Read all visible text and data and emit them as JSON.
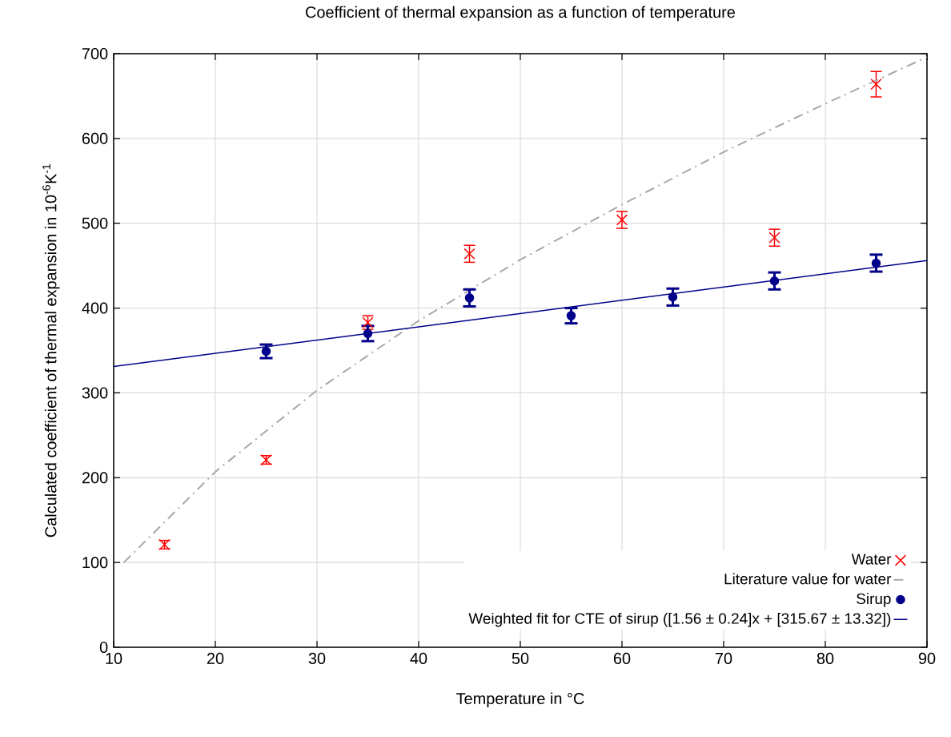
{
  "chart_data": {
    "type": "scatter",
    "title": "Coefficient of thermal expansion as a function of temperature",
    "xlabel": "Temperature in °C",
    "ylabel": "Calculated coefficient of thermal expansion in 10$^{-6}$K$^{-1}$",
    "xlim": [
      10,
      90
    ],
    "xticks": [
      10,
      20,
      30,
      40,
      50,
      60,
      70,
      80,
      90
    ],
    "ylim": [
      0,
      700
    ],
    "yticks": [
      0,
      100,
      200,
      300,
      400,
      500,
      600,
      700
    ],
    "grid": true,
    "legend": "bottom right",
    "series": [
      {
        "name": "Water",
        "marker": "cross",
        "color": "#ff0000",
        "x": [
          15,
          25,
          35,
          45,
          60,
          75,
          85
        ],
        "values": [
          121,
          221,
          383,
          464,
          504,
          483,
          664
        ],
        "errors": [
          5,
          5,
          8,
          10,
          10,
          10,
          15
        ]
      },
      {
        "name": "Literature value for water",
        "type": "line",
        "line_style": "dashed",
        "marker": "none",
        "color": "#a9a9a9",
        "x": [
          11,
          20,
          30,
          40,
          50,
          60,
          70,
          80,
          90
        ],
        "values": [
          100,
          207,
          303,
          385,
          457,
          522,
          584,
          641,
          696
        ]
      },
      {
        "name": "Sirup",
        "marker": "circle",
        "color": "#00008b",
        "x": [
          25,
          35,
          45,
          55,
          65,
          75,
          85
        ],
        "values": [
          349,
          370,
          412,
          391,
          413,
          432,
          453
        ],
        "errors": [
          8,
          9,
          10,
          9,
          10,
          10,
          10
        ]
      },
      {
        "name": "Weighted fit for CTE of sirup ([1.56 ± 0.24]x + [315.67 ± 13.32])",
        "type": "line",
        "line_style": "solid",
        "marker": "none",
        "color": "#00008b",
        "x": [
          10,
          90
        ],
        "values": [
          331,
          456
        ]
      }
    ]
  }
}
